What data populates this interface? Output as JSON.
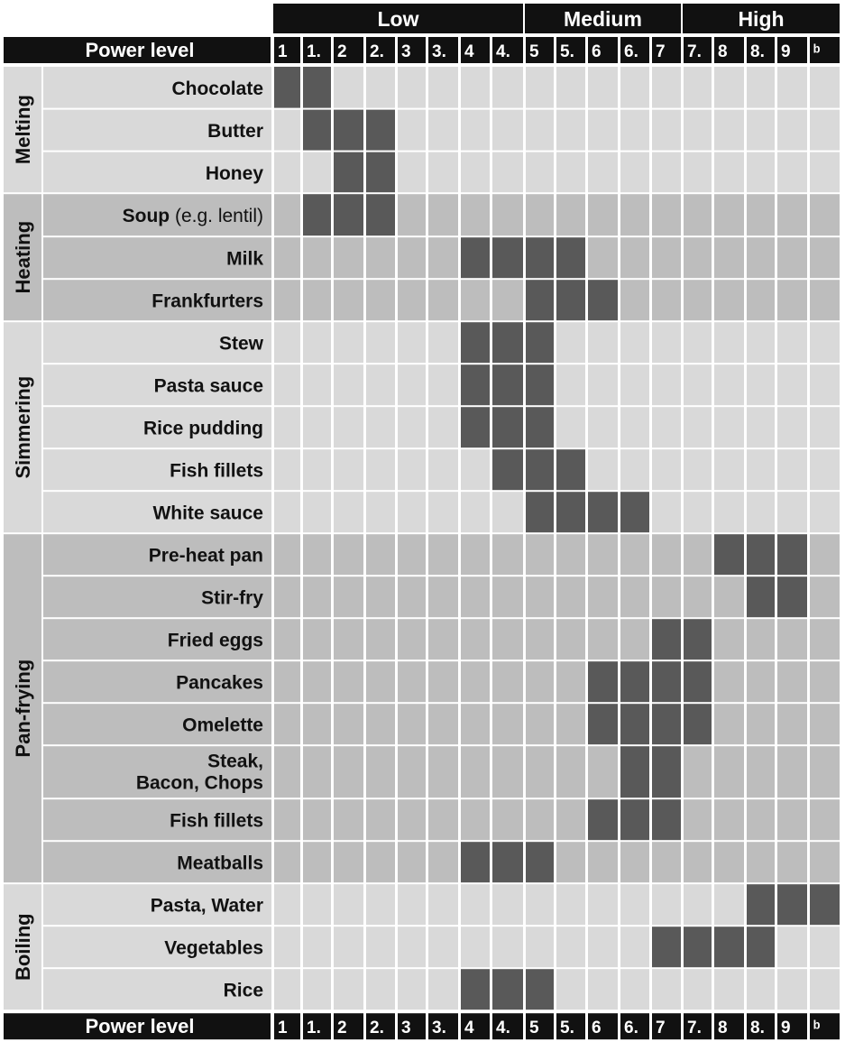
{
  "header": {
    "power_label": "Power level",
    "bands": [
      {
        "label": "Low",
        "from": 0,
        "to": 7
      },
      {
        "label": "Medium",
        "from": 8,
        "to": 12
      },
      {
        "label": "High",
        "from": 13,
        "to": 17
      }
    ],
    "levels": [
      "1",
      "1.",
      "2",
      "2.",
      "3",
      "3.",
      "4",
      "4.",
      "5",
      "5.",
      "6",
      "6.",
      "7",
      "7.",
      "8",
      "8.",
      "9",
      "ᵇ"
    ]
  },
  "colors": {
    "header_bg": "#111111",
    "active_cell": "#595959",
    "row_light": "#d9d9d9",
    "row_dark": "#bdbdbd",
    "grid": "#ffffff",
    "text": "#111111"
  },
  "groups": [
    {
      "name": "Melting",
      "rows": [
        {
          "label": "Chocolate",
          "active": [
            0,
            1
          ]
        },
        {
          "label": "Butter",
          "active": [
            1,
            2,
            3
          ]
        },
        {
          "label": "Honey",
          "active": [
            2,
            3
          ]
        }
      ]
    },
    {
      "name": "Heating",
      "rows": [
        {
          "label": "Soup",
          "note": " (e.g. lentil)",
          "active": [
            1,
            2,
            3
          ]
        },
        {
          "label": "Milk",
          "active": [
            6,
            7,
            8,
            9
          ]
        },
        {
          "label": "Frankfurters",
          "active": [
            8,
            9,
            10
          ]
        }
      ]
    },
    {
      "name": "Simmering",
      "rows": [
        {
          "label": "Stew",
          "active": [
            6,
            7,
            8
          ]
        },
        {
          "label": "Pasta sauce",
          "active": [
            6,
            7,
            8
          ]
        },
        {
          "label": "Rice pudding",
          "active": [
            6,
            7,
            8
          ]
        },
        {
          "label": "Fish fillets",
          "active": [
            7,
            8,
            9
          ]
        },
        {
          "label": "White sauce",
          "active": [
            8,
            9,
            10,
            11
          ]
        }
      ]
    },
    {
      "name": "Pan-frying",
      "rows": [
        {
          "label": "Pre-heat pan",
          "active": [
            14,
            15,
            16
          ]
        },
        {
          "label": "Stir-fry",
          "active": [
            15,
            16
          ]
        },
        {
          "label": "Fried eggs",
          "active": [
            12,
            13
          ]
        },
        {
          "label": "Pancakes",
          "active": [
            10,
            11,
            12,
            13
          ]
        },
        {
          "label": "Omelette",
          "active": [
            10,
            11,
            12,
            13
          ]
        },
        {
          "label": "Steak,",
          "label2": "Bacon, Chops",
          "active": [
            11,
            12
          ]
        },
        {
          "label": "Fish fillets",
          "active": [
            10,
            11,
            12
          ]
        },
        {
          "label": "Meatballs",
          "active": [
            6,
            7,
            8
          ]
        }
      ]
    },
    {
      "name": "Boiling",
      "rows": [
        {
          "label": "Pasta, Water",
          "active": [
            15,
            16,
            17
          ]
        },
        {
          "label": "Vegetables",
          "active": [
            12,
            13,
            14,
            15
          ]
        },
        {
          "label": "Rice",
          "active": [
            6,
            7,
            8
          ]
        }
      ]
    }
  ]
}
